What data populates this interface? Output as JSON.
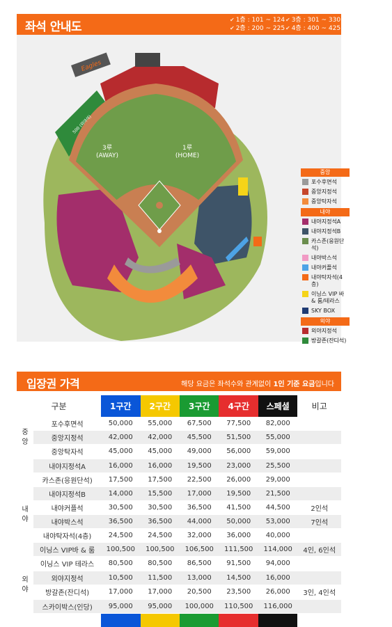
{
  "seat_guide": {
    "title": "좌석 안내도",
    "floors": [
      {
        "label": "1층 : 101 ~ 124"
      },
      {
        "label": "3층 : 301 ~ 330"
      },
      {
        "label": "2층 : 200 ~ 225"
      },
      {
        "label": "4층 : 400 ~ 425"
      }
    ],
    "map": {
      "field_labels": {
        "first_base": "1루",
        "first_base_sub": "(HOME)",
        "third_base": "3루",
        "third_base_sub": "(AWAY)"
      },
      "logo_text": "Eagles",
      "bullpen_label": "500 (외야석)",
      "colors": {
        "grass": "#6f9d4a",
        "dirt": "#c97f52",
        "red_seats": "#b72b2e",
        "purple_seats": "#a32e6b",
        "slate_seats": "#3e5468",
        "orange_seats": "#f28b3c",
        "olive_seats": "#93b04c",
        "green_zone": "#2f8a3b",
        "yellow_seats": "#f5d418",
        "sky_box": "#1f3b73",
        "pink": "#f19ac4",
        "blue": "#4da3e6",
        "gray": "#9a9a9a"
      }
    },
    "legend": {
      "center": {
        "heading": "중앙",
        "items": [
          {
            "label": "포수후면석",
            "color": "#9a9a9a"
          },
          {
            "label": "중앙지정석",
            "color": "#c6462b"
          },
          {
            "label": "중앙탁자석",
            "color": "#f28b3c"
          }
        ]
      },
      "infield": {
        "heading": "내야",
        "items": [
          {
            "label": "내야지정석A",
            "color": "#a32e6b"
          },
          {
            "label": "내야지정석B",
            "color": "#3e5468"
          },
          {
            "label": "카스존(응원단석)",
            "color": "#6b8e4e"
          },
          {
            "label": "내야박스석",
            "color": "#f19ac4"
          },
          {
            "label": "내야커플석",
            "color": "#4da3e6"
          },
          {
            "label": "내야탁자석(4층)",
            "color": "#f46a17"
          },
          {
            "label": "이닝스 VIP 바 & 룸/테라스",
            "color": "#f5d418"
          },
          {
            "label": "SKY BOX",
            "color": "#1f3b73"
          }
        ]
      },
      "outfield": {
        "heading": "외야",
        "items": [
          {
            "label": "외야지정석",
            "color": "#b72b2e"
          },
          {
            "label": "방갈존(잔디석)",
            "color": "#2f8a3b"
          }
        ]
      }
    }
  },
  "price_table": {
    "title": "입장권 가격",
    "note_prefix": "해당 요금은 좌석수와 관계없이 ",
    "note_bold": "1인 기준 요금",
    "note_suffix": "입니다",
    "headers": {
      "category": "구분",
      "tier1": "1구간",
      "tier2": "2구간",
      "tier3": "3구간",
      "tier4": "4구간",
      "special": "스페셜",
      "remarks": "비고"
    },
    "groups": [
      {
        "name": "중앙",
        "rows": [
          {
            "seat": "포수후면석",
            "p": [
              "50,000",
              "55,000",
              "67,500",
              "77,500",
              "82,000"
            ],
            "note": ""
          },
          {
            "seat": "중앙지정석",
            "p": [
              "42,000",
              "42,000",
              "45,500",
              "51,500",
              "55,000"
            ],
            "note": ""
          },
          {
            "seat": "중앙탁자석",
            "p": [
              "45,000",
              "45,000",
              "49,000",
              "56,000",
              "59,000"
            ],
            "note": ""
          }
        ]
      },
      {
        "name": "내야",
        "rows": [
          {
            "seat": "내야지정석A",
            "p": [
              "16,000",
              "16,000",
              "19,500",
              "23,000",
              "25,500"
            ],
            "note": ""
          },
          {
            "seat": "카스존(응원단석)",
            "p": [
              "17,500",
              "17,500",
              "22,500",
              "26,000",
              "29,000"
            ],
            "note": ""
          },
          {
            "seat": "내야지정석B",
            "p": [
              "14,000",
              "15,500",
              "17,000",
              "19,500",
              "21,500"
            ],
            "note": ""
          },
          {
            "seat": "내야커플석",
            "p": [
              "30,500",
              "30,500",
              "36,500",
              "41,500",
              "44,500"
            ],
            "note": "2인석"
          },
          {
            "seat": "내야박스석",
            "p": [
              "36,500",
              "36,500",
              "44,000",
              "50,000",
              "53,000"
            ],
            "note": "7인석"
          },
          {
            "seat": "내야탁자석(4층)",
            "p": [
              "24,500",
              "24,500",
              "32,000",
              "36,000",
              "40,000"
            ],
            "note": ""
          },
          {
            "seat": "이닝스 VIP바 & 룸",
            "p": [
              "100,500",
              "100,500",
              "106,500",
              "111,500",
              "114,000"
            ],
            "note": "4인, 6인석"
          },
          {
            "seat": "이닝스 VIP 테라스",
            "p": [
              "80,500",
              "80,500",
              "86,500",
              "91,500",
              "94,000"
            ],
            "note": ""
          }
        ]
      },
      {
        "name": "외야",
        "rows": [
          {
            "seat": "외야지정석",
            "p": [
              "10,500",
              "11,500",
              "13,000",
              "14,500",
              "16,000"
            ],
            "note": ""
          },
          {
            "seat": "방갈존(잔디석)",
            "p": [
              "17,000",
              "17,000",
              "20,500",
              "23,500",
              "26,000"
            ],
            "note": "3인, 4인석"
          }
        ]
      },
      {
        "name": "",
        "rows": [
          {
            "seat": "스카이박스(인당)",
            "p": [
              "95,000",
              "95,000",
              "100,000",
              "110,500",
              "116,000"
            ],
            "note": ""
          }
        ]
      }
    ]
  }
}
